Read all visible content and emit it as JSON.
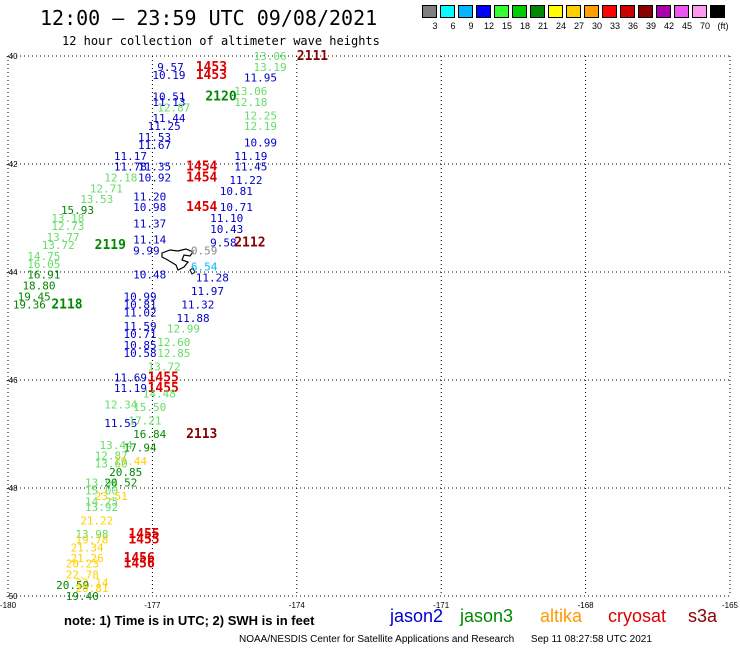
{
  "header": {
    "title": "12:00 – 23:59 UTC 09/08/2021",
    "subtitle": "12 hour collection of altimeter wave heights"
  },
  "legend": {
    "levels": [
      "3",
      "6",
      "9",
      "12",
      "15",
      "18",
      "21",
      "24",
      "27",
      "30",
      "33",
      "36",
      "39",
      "42",
      "45",
      "70",
      "(ft)"
    ],
    "colors": [
      "#7f7f7f",
      "#00ffff",
      "#00b8ff",
      "#0000ff",
      "#33ff33",
      "#00cc00",
      "#008800",
      "#ffff00",
      "#ffd000",
      "#ffa000",
      "#ff0000",
      "#cc0000",
      "#880000",
      "#aa00aa",
      "#ee55ee",
      "#ff99ee",
      "#000000"
    ]
  },
  "footer": {
    "note": "note:  1) Time is in UTC; 2) SWH is in feet",
    "satellites": [
      {
        "name": "jason2",
        "color": "#0000cc"
      },
      {
        "name": "jason3",
        "color": "#008800"
      },
      {
        "name": "altika",
        "color": "#ff9900"
      },
      {
        "name": "cryosat",
        "color": "#dd0000"
      },
      {
        "name": "s3a",
        "color": "#880000"
      }
    ],
    "credit": "NOAA/NESDIS Center for Satellite Applications and Research",
    "timestamp": "Sep 11 08:27:58 UTC 2021"
  },
  "chart_data": {
    "type": "scatter",
    "title": "12:00 – 23:59 UTC 09/08/2021",
    "xlabel": "",
    "ylabel": "",
    "xlim": [
      -180,
      -165
    ],
    "ylim": [
      -50,
      -40
    ],
    "x_ticks": [
      "-180",
      "-177",
      "-174",
      "-171",
      "-168",
      "-165"
    ],
    "y_ticks": [
      "-40",
      "-42",
      "-44",
      "-46",
      "-48",
      "-50"
    ],
    "grid": true,
    "labels": [
      {
        "t": "13.06",
        "lon": -174.9,
        "lat": -40.0,
        "c": "#66dd66"
      },
      {
        "t": "2111",
        "lon": -174.0,
        "lat": -40.0,
        "c": "#880000",
        "b": 1
      },
      {
        "t": "13.19",
        "lon": -174.9,
        "lat": -40.2,
        "c": "#66dd66"
      },
      {
        "t": "9.57",
        "lon": -176.9,
        "lat": -40.2,
        "c": "#0000cc"
      },
      {
        "t": "1453",
        "lon": -176.1,
        "lat": -40.2,
        "c": "#dd0000",
        "b": 1
      },
      {
        "t": "10.19",
        "lon": -177.0,
        "lat": -40.35,
        "c": "#0000cc"
      },
      {
        "t": "1453",
        "lon": -176.1,
        "lat": -40.35,
        "c": "#dd0000",
        "b": 1
      },
      {
        "t": "11.95",
        "lon": -175.1,
        "lat": -40.4,
        "c": "#0000cc"
      },
      {
        "t": "13.06",
        "lon": -175.3,
        "lat": -40.65,
        "c": "#66dd66"
      },
      {
        "t": "10.51",
        "lon": -177.0,
        "lat": -40.75,
        "c": "#0000cc"
      },
      {
        "t": "2120",
        "lon": -175.9,
        "lat": -40.75,
        "c": "#008800",
        "b": 1
      },
      {
        "t": "11.13",
        "lon": -177.0,
        "lat": -40.85,
        "c": "#0000cc"
      },
      {
        "t": "12.18",
        "lon": -175.3,
        "lat": -40.85,
        "c": "#66dd66"
      },
      {
        "t": "12.87",
        "lon": -176.9,
        "lat": -40.95,
        "c": "#66dd66"
      },
      {
        "t": "12.25",
        "lon": -175.1,
        "lat": -41.1,
        "c": "#66dd66"
      },
      {
        "t": "11.44",
        "lon": -177.0,
        "lat": -41.15,
        "c": "#0000cc"
      },
      {
        "t": "11.25",
        "lon": -177.1,
        "lat": -41.3,
        "c": "#0000cc"
      },
      {
        "t": "12.19",
        "lon": -175.1,
        "lat": -41.3,
        "c": "#66dd66"
      },
      {
        "t": "11.53",
        "lon": -177.3,
        "lat": -41.5,
        "c": "#0000cc"
      },
      {
        "t": "10.99",
        "lon": -175.1,
        "lat": -41.6,
        "c": "#0000cc"
      },
      {
        "t": "11.67",
        "lon": -177.3,
        "lat": -41.65,
        "c": "#0000cc"
      },
      {
        "t": "11.19",
        "lon": -175.3,
        "lat": -41.85,
        "c": "#0000cc"
      },
      {
        "t": "11.17",
        "lon": -177.8,
        "lat": -41.85,
        "c": "#0000cc"
      },
      {
        "t": "11.78",
        "lon": -177.8,
        "lat": -42.05,
        "c": "#0000cc"
      },
      {
        "t": "11.35",
        "lon": -177.3,
        "lat": -42.05,
        "c": "#0000cc"
      },
      {
        "t": "1454",
        "lon": -176.3,
        "lat": -42.05,
        "c": "#dd0000",
        "b": 1
      },
      {
        "t": "11.45",
        "lon": -175.3,
        "lat": -42.05,
        "c": "#0000cc"
      },
      {
        "t": "12.18",
        "lon": -178.0,
        "lat": -42.25,
        "c": "#66dd66"
      },
      {
        "t": "10.92",
        "lon": -177.3,
        "lat": -42.25,
        "c": "#0000cc"
      },
      {
        "t": "1454",
        "lon": -176.3,
        "lat": -42.25,
        "c": "#dd0000",
        "b": 1
      },
      {
        "t": "11.22",
        "lon": -175.4,
        "lat": -42.3,
        "c": "#0000cc"
      },
      {
        "t": "12.71",
        "lon": -178.3,
        "lat": -42.45,
        "c": "#66dd66"
      },
      {
        "t": "10.81",
        "lon": -175.6,
        "lat": -42.5,
        "c": "#0000cc"
      },
      {
        "t": "13.53",
        "lon": -178.5,
        "lat": -42.65,
        "c": "#66dd66"
      },
      {
        "t": "11.20",
        "lon": -177.4,
        "lat": -42.6,
        "c": "#0000cc"
      },
      {
        "t": "15.93",
        "lon": -178.9,
        "lat": -42.85,
        "c": "#008800"
      },
      {
        "t": "10.98",
        "lon": -177.4,
        "lat": -42.8,
        "c": "#0000cc"
      },
      {
        "t": "1454",
        "lon": -176.3,
        "lat": -42.8,
        "c": "#dd0000",
        "b": 1
      },
      {
        "t": "10.71",
        "lon": -175.6,
        "lat": -42.8,
        "c": "#0000cc"
      },
      {
        "t": "13.18",
        "lon": -179.1,
        "lat": -43.0,
        "c": "#66dd66"
      },
      {
        "t": "11.10",
        "lon": -175.8,
        "lat": -43.0,
        "c": "#0000cc"
      },
      {
        "t": "11.37",
        "lon": -177.4,
        "lat": -43.1,
        "c": "#0000cc"
      },
      {
        "t": "12.73",
        "lon": -179.1,
        "lat": -43.15,
        "c": "#66dd66"
      },
      {
        "t": "10.43",
        "lon": -175.8,
        "lat": -43.2,
        "c": "#0000cc"
      },
      {
        "t": "13.77",
        "lon": -179.2,
        "lat": -43.35,
        "c": "#66dd66"
      },
      {
        "t": "11.14",
        "lon": -177.4,
        "lat": -43.4,
        "c": "#0000cc"
      },
      {
        "t": "9.58",
        "lon": -175.8,
        "lat": -43.45,
        "c": "#0000cc"
      },
      {
        "t": "2112",
        "lon": -175.3,
        "lat": -43.45,
        "c": "#880000",
        "b": 1
      },
      {
        "t": "13.72",
        "lon": -179.3,
        "lat": -43.5,
        "c": "#66dd66"
      },
      {
        "t": "2119",
        "lon": -178.2,
        "lat": -43.5,
        "c": "#008800",
        "b": 1
      },
      {
        "t": "9.99",
        "lon": -177.4,
        "lat": -43.6,
        "c": "#0000cc"
      },
      {
        "t": "0.59",
        "lon": -176.2,
        "lat": -43.6,
        "c": "#888888"
      },
      {
        "t": "14.75",
        "lon": -179.6,
        "lat": -43.7,
        "c": "#66dd66"
      },
      {
        "t": "16.05",
        "lon": -179.6,
        "lat": -43.85,
        "c": "#66dd66"
      },
      {
        "t": "6.54",
        "lon": -176.2,
        "lat": -43.9,
        "c": "#00b8ff"
      },
      {
        "t": "16.91",
        "lon": -179.6,
        "lat": -44.05,
        "c": "#008800"
      },
      {
        "t": "10.48",
        "lon": -177.4,
        "lat": -44.05,
        "c": "#0000cc"
      },
      {
        "t": "11.28",
        "lon": -176.1,
        "lat": -44.1,
        "c": "#0000cc"
      },
      {
        "t": "18.80",
        "lon": -179.7,
        "lat": -44.25,
        "c": "#008800"
      },
      {
        "t": "11.97",
        "lon": -176.2,
        "lat": -44.35,
        "c": "#0000cc"
      },
      {
        "t": "19.45",
        "lon": -179.8,
        "lat": -44.45,
        "c": "#008800"
      },
      {
        "t": "10.99",
        "lon": -177.6,
        "lat": -44.45,
        "c": "#0000cc"
      },
      {
        "t": "19.36",
        "lon": -179.9,
        "lat": -44.6,
        "c": "#008800"
      },
      {
        "t": "2118",
        "lon": -179.1,
        "lat": -44.6,
        "c": "#008800",
        "b": 1
      },
      {
        "t": "10.81",
        "lon": -177.6,
        "lat": -44.6,
        "c": "#0000cc"
      },
      {
        "t": "11.32",
        "lon": -176.4,
        "lat": -44.6,
        "c": "#0000cc"
      },
      {
        "t": "11.02",
        "lon": -177.6,
        "lat": -44.75,
        "c": "#0000cc"
      },
      {
        "t": "11.88",
        "lon": -176.5,
        "lat": -44.85,
        "c": "#0000cc"
      },
      {
        "t": "11.59",
        "lon": -177.6,
        "lat": -45.0,
        "c": "#0000cc"
      },
      {
        "t": "12.99",
        "lon": -176.7,
        "lat": -45.05,
        "c": "#66dd66"
      },
      {
        "t": "10.71",
        "lon": -177.6,
        "lat": -45.15,
        "c": "#0000cc"
      },
      {
        "t": "12.60",
        "lon": -176.9,
        "lat": -45.3,
        "c": "#66dd66"
      },
      {
        "t": "10.85",
        "lon": -177.6,
        "lat": -45.35,
        "c": "#0000cc"
      },
      {
        "t": "10.58",
        "lon": -177.6,
        "lat": -45.5,
        "c": "#0000cc"
      },
      {
        "t": "12.85",
        "lon": -176.9,
        "lat": -45.5,
        "c": "#66dd66"
      },
      {
        "t": "13.72",
        "lon": -177.1,
        "lat": -45.75,
        "c": "#66dd66"
      },
      {
        "t": "11.69",
        "lon": -177.8,
        "lat": -45.95,
        "c": "#0000cc"
      },
      {
        "t": "1455",
        "lon": -177.1,
        "lat": -45.95,
        "c": "#dd0000",
        "b": 1
      },
      {
        "t": "11.19",
        "lon": -177.8,
        "lat": -46.15,
        "c": "#0000cc"
      },
      {
        "t": "1455",
        "lon": -177.1,
        "lat": -46.15,
        "c": "#dd0000",
        "b": 1
      },
      {
        "t": "14.48",
        "lon": -177.2,
        "lat": -46.25,
        "c": "#66dd66"
      },
      {
        "t": "12.34",
        "lon": -178.0,
        "lat": -46.45,
        "c": "#66dd66"
      },
      {
        "t": "15.50",
        "lon": -177.4,
        "lat": -46.5,
        "c": "#66dd66"
      },
      {
        "t": "11.55",
        "lon": -178.0,
        "lat": -46.8,
        "c": "#0000cc"
      },
      {
        "t": "17.21",
        "lon": -177.5,
        "lat": -46.75,
        "c": "#66dd66"
      },
      {
        "t": "16.84",
        "lon": -177.4,
        "lat": -47.0,
        "c": "#008800"
      },
      {
        "t": "2113",
        "lon": -176.3,
        "lat": -47.0,
        "c": "#880000",
        "b": 1
      },
      {
        "t": "13.44",
        "lon": -178.1,
        "lat": -47.2,
        "c": "#66dd66"
      },
      {
        "t": "17.94",
        "lon": -177.6,
        "lat": -47.25,
        "c": "#008800"
      },
      {
        "t": "12.87",
        "lon": -178.2,
        "lat": -47.4,
        "c": "#66dd66"
      },
      {
        "t": "19.44",
        "lon": -177.8,
        "lat": -47.5,
        "c": "#ffd000"
      },
      {
        "t": "13.60",
        "lon": -178.2,
        "lat": -47.55,
        "c": "#66dd66"
      },
      {
        "t": "20.85",
        "lon": -177.9,
        "lat": -47.7,
        "c": "#008800"
      },
      {
        "t": "13.94",
        "lon": -178.4,
        "lat": -47.9,
        "c": "#66dd66"
      },
      {
        "t": "20.52",
        "lon": -178.0,
        "lat": -47.9,
        "c": "#008800"
      },
      {
        "t": "15.00",
        "lon": -178.4,
        "lat": -48.05,
        "c": "#66dd66"
      },
      {
        "t": "14.25",
        "lon": -178.4,
        "lat": -48.25,
        "c": "#66dd66"
      },
      {
        "t": "23.51",
        "lon": -178.2,
        "lat": -48.15,
        "c": "#ffd000"
      },
      {
        "t": "13.92",
        "lon": -178.4,
        "lat": -48.35,
        "c": "#66dd66"
      },
      {
        "t": "21.22",
        "lon": -178.5,
        "lat": -48.6,
        "c": "#ffd000"
      },
      {
        "t": "13.98",
        "lon": -178.6,
        "lat": -48.85,
        "c": "#66dd66"
      },
      {
        "t": "1455",
        "lon": -177.5,
        "lat": -48.85,
        "c": "#dd0000",
        "b": 1
      },
      {
        "t": "19.78",
        "lon": -178.6,
        "lat": -48.95,
        "c": "#ffd000"
      },
      {
        "t": "1455",
        "lon": -177.5,
        "lat": -48.95,
        "c": "#dd0000",
        "b": 1
      },
      {
        "t": "21.34",
        "lon": -178.7,
        "lat": -49.1,
        "c": "#ffd000"
      },
      {
        "t": "21.26",
        "lon": -178.7,
        "lat": -49.3,
        "c": "#ffd000"
      },
      {
        "t": "1456",
        "lon": -177.6,
        "lat": -49.3,
        "c": "#dd0000",
        "b": 1
      },
      {
        "t": "20.23",
        "lon": -178.8,
        "lat": -49.4,
        "c": "#ffd000"
      },
      {
        "t": "1456",
        "lon": -177.6,
        "lat": -49.4,
        "c": "#dd0000",
        "b": 1
      },
      {
        "t": "22.78",
        "lon": -178.8,
        "lat": -49.6,
        "c": "#ffd000"
      },
      {
        "t": "22.14",
        "lon": -178.6,
        "lat": -49.75,
        "c": "#ffd000"
      },
      {
        "t": "20.59",
        "lon": -179.0,
        "lat": -49.8,
        "c": "#008800"
      },
      {
        "t": "20.81",
        "lon": -178.6,
        "lat": -49.85,
        "c": "#ffd000"
      },
      {
        "t": "19.40",
        "lon": -178.8,
        "lat": -50.0,
        "c": "#008800"
      }
    ]
  }
}
